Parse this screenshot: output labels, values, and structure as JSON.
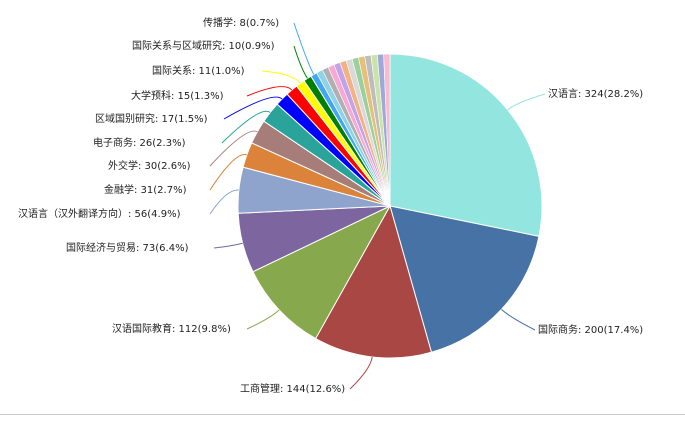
{
  "chart_data": {
    "type": "pie",
    "slices": [
      {
        "label": "汉语言",
        "value": 324,
        "pct": "28.2%",
        "color": "#93e6e0"
      },
      {
        "label": "国际商务",
        "value": 200,
        "pct": "17.4%",
        "color": "#4672a6"
      },
      {
        "label": "工商管理",
        "value": 144,
        "pct": "12.6%",
        "color": "#a84744"
      },
      {
        "label": "汉语国际教育",
        "value": 112,
        "pct": "9.8%",
        "color": "#88a84e"
      },
      {
        "label": "国际经济与贸易",
        "value": 73,
        "pct": "6.4%",
        "color": "#7d66a0"
      },
      {
        "label": "汉语言（汉外翻译方向）",
        "value": 56,
        "pct": "4.9%",
        "color": "#8fa4cd"
      },
      {
        "label": "金融学",
        "value": 31,
        "pct": "2.7%",
        "color": "#db823b"
      },
      {
        "label": "外交学",
        "value": 30,
        "pct": "2.6%",
        "color": "#a67d78"
      },
      {
        "label": "电子商务",
        "value": 26,
        "pct": "2.3%",
        "color": "#2aa39b"
      },
      {
        "label": "区域国别研究",
        "value": 17,
        "pct": "1.5%",
        "color": "#0000ff"
      },
      {
        "label": "大学预科",
        "value": 15,
        "pct": "1.3%",
        "color": "#ff0000"
      },
      {
        "label": "国际关系",
        "value": 11,
        "pct": "1.0%",
        "color": "#ffff00"
      },
      {
        "label": "国际关系与区域研究",
        "value": 10,
        "pct": "0.9%",
        "color": "#008000"
      },
      {
        "label": "传播学",
        "value": 8,
        "pct": "0.7%",
        "color": "#42a5f5"
      }
    ],
    "other_colors": [
      "#8fd3e8",
      "#b0b0b0",
      "#f9a8d4",
      "#c3a3e6",
      "#f4b183",
      "#d9d9d9",
      "#9bcf9b",
      "#e6c07b",
      "#bdbdbd",
      "#c9e3a8",
      "#9fa8da",
      "#f8bbd0"
    ],
    "start_angle_deg": 0,
    "direction": "clockwise"
  }
}
